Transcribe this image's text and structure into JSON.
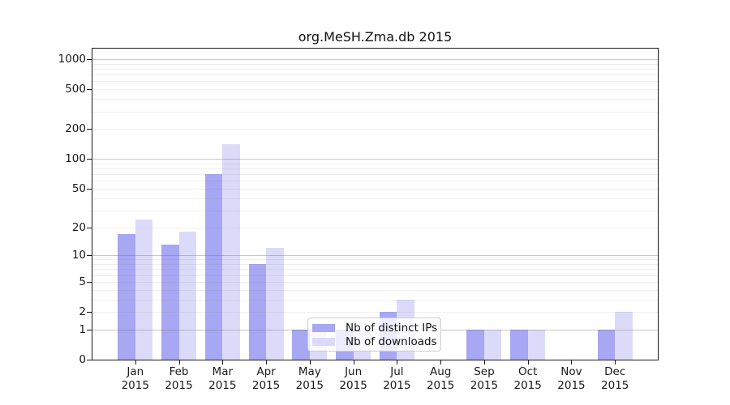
{
  "chart_data": {
    "type": "bar",
    "title": "org.MeSH.Zma.db 2015",
    "categories": [
      "Jan 2015",
      "Feb 2015",
      "Mar 2015",
      "Apr 2015",
      "May 2015",
      "Jun 2015",
      "Jul 2015",
      "Aug 2015",
      "Sep 2015",
      "Oct 2015",
      "Nov 2015",
      "Dec 2015"
    ],
    "series": [
      {
        "name": "Nb of distinct IPs",
        "color": "#a7a7f3",
        "values": [
          17,
          13,
          70,
          8,
          1,
          1,
          2,
          0,
          1,
          1,
          0,
          1
        ]
      },
      {
        "name": "Nb of downloads",
        "color": "#dbdbf9",
        "values": [
          24,
          18,
          140,
          12,
          1,
          1,
          3,
          0,
          1,
          1,
          0,
          2
        ]
      }
    ],
    "yscale": "log1p",
    "ylim": [
      0,
      1320
    ],
    "yticks": [
      0,
      1,
      2,
      5,
      10,
      20,
      50,
      100,
      200,
      500,
      1000
    ],
    "grid": {
      "orientation": "horizontal",
      "major_at": [
        1,
        10,
        100,
        1000
      ],
      "minor_at": [
        2,
        3,
        4,
        5,
        6,
        7,
        8,
        9,
        20,
        30,
        40,
        50,
        60,
        70,
        80,
        90,
        200,
        300,
        400,
        500,
        600,
        700,
        800,
        900
      ]
    },
    "legend": {
      "position": "inside-bottom-center-left"
    }
  },
  "colors": {
    "background": "#ffffff",
    "spine": "#1a1a1a",
    "tick_label": "#1a1a1a",
    "legend_border": "#cccccc"
  }
}
